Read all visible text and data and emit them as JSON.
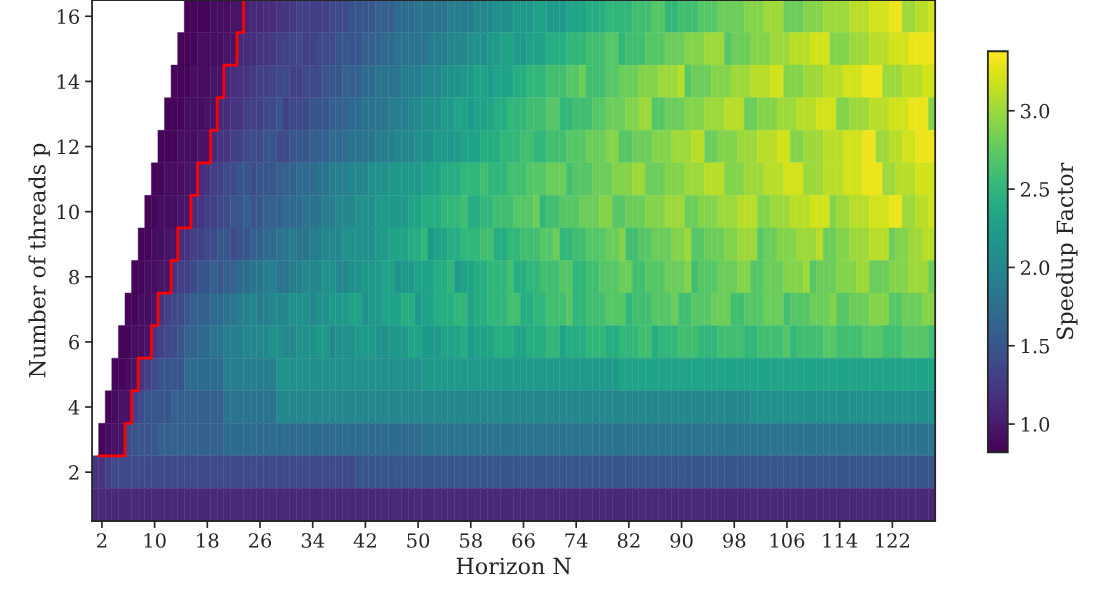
{
  "chart_data": {
    "type": "heatmap",
    "xlabel": "Horizon N",
    "ylabel": "Number of threads p",
    "clabel": "Speedup Factor",
    "xlim": [
      0.5,
      128.5
    ],
    "xticks": [
      2,
      10,
      18,
      26,
      34,
      42,
      50,
      58,
      66,
      74,
      82,
      90,
      98,
      106,
      114,
      122
    ],
    "ylim": [
      0.5,
      16.5
    ],
    "yticks": [
      2,
      4,
      6,
      8,
      10,
      12,
      14,
      16
    ],
    "clim": [
      0.82,
      3.38
    ],
    "cticks": [
      {
        "value": 1,
        "label": "1.0"
      },
      1.5,
      {
        "value": 2,
        "label": "2.0"
      },
      2.5,
      {
        "value": 3,
        "label": "3.0"
      }
    ],
    "series": [
      {
        "type": "line",
        "color": "#ff0000",
        "x": [
          1.5,
          5.5,
          5.5,
          6.5,
          6.5,
          7.5,
          7.5,
          9.5,
          9.5,
          10.5,
          10.5,
          12.5,
          12.5,
          13.5,
          13.5,
          15.5,
          15.5,
          16.5,
          16.5,
          18.5,
          18.5,
          19.5,
          19.5,
          20.5,
          20.5,
          22.5,
          22.5,
          23.5,
          23.5
        ],
        "values": [
          2.5,
          2.5,
          3.5,
          3.5,
          4.5,
          4.5,
          5.5,
          5.5,
          6.5,
          6.5,
          7.5,
          7.5,
          8.5,
          8.5,
          9.5,
          9.5,
          10.5,
          10.5,
          11.5,
          11.5,
          12.5,
          12.5,
          13.5,
          13.5,
          14.5,
          14.5,
          15.5,
          15.5,
          16.5
        ]
      }
    ],
    "cells": [
      [
        null,
        null,
        null,
        null,
        null,
        null,
        null,
        null,
        null,
        null,
        null,
        null,
        null,
        null,
        0.82,
        0.85,
        0.85,
        0.85,
        0.9,
        0.9,
        0.9,
        0.95,
        0.95,
        1.05,
        1.1,
        1.1,
        1.15,
        1.15,
        1.2,
        1.2,
        1.25,
        1.3,
        1.3,
        1.3,
        1.3,
        1.3,
        1.4,
        1.4,
        1.4,
        1.5,
        1.5,
        1.5,
        1.5,
        1.6,
        1.6,
        1.6,
        1.7,
        1.7,
        1.7,
        1.8,
        1.8,
        1.8,
        1.8,
        1.8,
        1.9,
        1.9,
        1.9,
        1.9,
        2.0,
        2.0,
        2.0,
        2.1,
        2.1,
        2.1,
        2.2,
        2.2,
        2.2,
        2.3,
        2.3,
        2.2,
        2.2,
        2.2,
        2.3,
        2.3,
        2.3,
        2.4,
        2.4,
        2.4,
        2.5,
        2.5,
        2.5,
        2.5,
        2.6,
        2.6,
        2.6,
        2.7,
        2.7,
        2.5,
        2.5,
        2.6,
        2.6,
        2.6,
        2.7,
        2.7,
        2.7,
        2.8,
        2.8,
        2.8,
        2.8,
        2.9,
        2.9,
        2.9,
        3.0,
        3.0,
        3.0,
        2.8,
        2.8,
        2.8,
        2.9,
        2.9,
        2.9,
        3.0,
        3.0,
        3.0,
        3.0,
        3.1,
        3.1,
        3.1,
        3.2,
        3.2,
        3.2,
        3.3,
        3.3,
        3.0,
        3.0,
        3.1,
        3.1,
        3.2
      ],
      [
        null,
        null,
        null,
        null,
        null,
        null,
        null,
        null,
        null,
        null,
        null,
        null,
        null,
        0.85,
        0.85,
        0.85,
        0.9,
        0.9,
        0.9,
        0.9,
        0.95,
        0.95,
        1.1,
        1.15,
        1.15,
        1.2,
        1.2,
        1.25,
        1.3,
        1.3,
        1.35,
        1.4,
        1.3,
        1.3,
        1.4,
        1.4,
        1.4,
        1.5,
        1.5,
        1.5,
        1.5,
        1.6,
        1.6,
        1.6,
        1.7,
        1.7,
        1.8,
        1.8,
        1.8,
        1.8,
        1.8,
        1.9,
        1.9,
        1.9,
        2.0,
        2.0,
        2.0,
        2.1,
        2.1,
        2.1,
        2.2,
        2.2,
        2.3,
        2.3,
        2.2,
        2.2,
        2.3,
        2.3,
        2.3,
        2.4,
        2.4,
        2.4,
        2.5,
        2.5,
        2.5,
        2.6,
        2.6,
        2.6,
        2.7,
        2.7,
        2.5,
        2.6,
        2.6,
        2.6,
        2.7,
        2.7,
        2.7,
        2.8,
        2.8,
        2.8,
        2.9,
        2.9,
        2.9,
        3.0,
        3.0,
        3.0,
        2.7,
        2.8,
        2.8,
        2.8,
        2.9,
        2.9,
        2.9,
        3.0,
        3.0,
        3.0,
        3.1,
        3.1,
        3.1,
        3.2,
        3.2,
        3.2,
        2.9,
        2.9,
        2.9,
        3.0,
        3.0,
        3.0,
        3.1,
        3.1,
        3.1,
        3.2,
        3.2,
        3.2,
        3.3,
        3.3,
        3.3,
        3.3
      ],
      [
        null,
        null,
        null,
        null,
        null,
        null,
        null,
        null,
        null,
        null,
        null,
        null,
        0.85,
        0.85,
        0.85,
        0.9,
        0.9,
        0.9,
        0.95,
        0.95,
        1.1,
        1.15,
        1.2,
        1.2,
        1.25,
        1.3,
        1.3,
        1.35,
        1.4,
        1.4,
        1.3,
        1.3,
        1.4,
        1.4,
        1.4,
        1.5,
        1.5,
        1.5,
        1.6,
        1.6,
        1.6,
        1.7,
        1.7,
        1.8,
        1.8,
        1.8,
        1.8,
        1.9,
        1.9,
        1.9,
        2.0,
        2.0,
        2.0,
        2.1,
        2.1,
        2.1,
        2.2,
        2.2,
        2.3,
        2.3,
        2.2,
        2.3,
        2.3,
        2.3,
        2.4,
        2.4,
        2.5,
        2.5,
        2.5,
        2.6,
        2.6,
        2.6,
        2.7,
        2.7,
        2.8,
        2.6,
        2.6,
        2.6,
        2.7,
        2.7,
        2.8,
        2.8,
        2.8,
        2.9,
        2.9,
        2.9,
        3.0,
        3.0,
        3.0,
        3.1,
        2.7,
        2.8,
        2.8,
        2.8,
        2.9,
        2.9,
        2.9,
        3.0,
        3.0,
        3.0,
        3.1,
        3.1,
        3.1,
        3.2,
        3.2,
        2.9,
        2.9,
        2.9,
        3.0,
        3.0,
        3.0,
        3.1,
        3.1,
        3.1,
        3.2,
        3.2,
        3.2,
        3.3,
        3.3,
        3.3,
        3.0,
        3.0,
        3.0,
        3.1,
        3.1,
        3.1,
        3.2,
        3.2
      ],
      [
        null,
        null,
        null,
        null,
        null,
        null,
        null,
        null,
        null,
        null,
        null,
        0.85,
        0.85,
        0.85,
        0.9,
        0.9,
        0.9,
        0.95,
        0.95,
        1.1,
        1.15,
        1.2,
        1.2,
        1.3,
        1.3,
        1.3,
        1.4,
        1.4,
        1.5,
        1.3,
        1.4,
        1.4,
        1.4,
        1.5,
        1.5,
        1.5,
        1.6,
        1.6,
        1.6,
        1.7,
        1.7,
        1.8,
        1.8,
        1.8,
        1.8,
        1.9,
        1.9,
        1.9,
        2.0,
        2.0,
        2.1,
        2.1,
        2.1,
        2.2,
        2.2,
        2.3,
        2.3,
        2.2,
        2.3,
        2.3,
        2.3,
        2.4,
        2.4,
        2.5,
        2.5,
        2.5,
        2.6,
        2.6,
        2.6,
        2.7,
        2.7,
        2.5,
        2.5,
        2.6,
        2.6,
        2.6,
        2.7,
        2.7,
        2.8,
        2.8,
        2.8,
        2.9,
        2.9,
        3.0,
        3.0,
        2.7,
        2.7,
        2.8,
        2.8,
        2.8,
        2.9,
        2.9,
        2.9,
        3.0,
        3.0,
        3.0,
        3.1,
        3.1,
        3.1,
        2.8,
        2.8,
        2.9,
        2.9,
        2.9,
        3.0,
        3.0,
        3.0,
        3.1,
        3.1,
        3.1,
        3.2,
        3.2,
        3.2,
        2.9,
        2.9,
        3.0,
        3.0,
        3.0,
        3.1,
        3.1,
        3.1,
        3.2,
        3.2,
        3.2,
        3.3,
        3.3,
        3.3,
        2.9
      ],
      [
        null,
        null,
        null,
        null,
        null,
        null,
        null,
        null,
        null,
        null,
        0.85,
        0.85,
        0.85,
        0.9,
        0.9,
        0.9,
        0.95,
        0.95,
        1.1,
        1.2,
        1.2,
        1.3,
        1.3,
        1.4,
        1.4,
        1.4,
        1.5,
        1.5,
        1.4,
        1.4,
        1.5,
        1.5,
        1.5,
        1.6,
        1.6,
        1.6,
        1.7,
        1.7,
        1.7,
        1.8,
        1.8,
        1.8,
        1.8,
        1.9,
        1.9,
        1.9,
        2.0,
        2.0,
        2.0,
        2.1,
        2.1,
        2.1,
        2.2,
        2.2,
        2.2,
        2.2,
        2.3,
        2.3,
        2.3,
        2.4,
        2.4,
        2.4,
        2.5,
        2.5,
        2.5,
        2.6,
        2.6,
        2.5,
        2.5,
        2.6,
        2.6,
        2.6,
        2.7,
        2.7,
        2.7,
        2.8,
        2.8,
        2.8,
        2.9,
        2.9,
        2.7,
        2.7,
        2.8,
        2.8,
        2.8,
        2.9,
        2.9,
        2.9,
        3.0,
        3.0,
        3.0,
        3.1,
        3.1,
        2.8,
        2.8,
        2.9,
        2.9,
        2.9,
        3.0,
        3.0,
        3.0,
        3.1,
        3.1,
        3.1,
        3.2,
        3.2,
        2.9,
        2.9,
        3.0,
        3.0,
        3.0,
        3.1,
        3.1,
        3.1,
        3.2,
        3.2,
        3.2,
        3.3,
        3.3,
        3.0,
        3.0,
        3.1,
        3.1,
        3.2,
        3.2,
        3.3,
        3.3,
        3.3
      ],
      [
        null,
        null,
        null,
        null,
        null,
        null,
        null,
        null,
        null,
        0.85,
        0.85,
        0.9,
        0.9,
        0.9,
        0.95,
        0.95,
        1.15,
        1.2,
        1.3,
        1.3,
        1.4,
        1.4,
        1.5,
        1.5,
        1.4,
        1.5,
        1.5,
        1.5,
        1.6,
        1.6,
        1.6,
        1.7,
        1.7,
        1.7,
        1.8,
        1.8,
        1.9,
        1.9,
        1.9,
        2.0,
        2.0,
        2.0,
        2.1,
        2.1,
        2.1,
        2.2,
        2.2,
        2.2,
        2.2,
        2.2,
        2.3,
        2.3,
        2.3,
        2.4,
        2.4,
        2.4,
        2.5,
        2.5,
        2.5,
        2.6,
        2.5,
        2.5,
        2.5,
        2.6,
        2.6,
        2.6,
        2.7,
        2.7,
        2.7,
        2.8,
        2.8,
        2.8,
        2.6,
        2.7,
        2.7,
        2.7,
        2.8,
        2.8,
        2.8,
        2.9,
        2.9,
        2.9,
        3.0,
        3.0,
        2.8,
        2.8,
        2.8,
        2.9,
        2.9,
        2.9,
        3.0,
        3.0,
        3.0,
        3.1,
        3.1,
        3.1,
        2.9,
        2.9,
        2.9,
        3.0,
        3.0,
        3.0,
        3.1,
        3.1,
        3.1,
        3.2,
        3.2,
        3.2,
        3.0,
        3.0,
        3.0,
        3.1,
        3.1,
        3.1,
        3.2,
        3.2,
        3.2,
        3.3,
        3.3,
        3.3,
        3.0,
        3.0,
        3.1,
        3.1,
        3.1,
        3.2,
        3.2,
        3.2
      ],
      [
        null,
        null,
        null,
        null,
        null,
        null,
        null,
        null,
        0.85,
        0.85,
        0.9,
        0.9,
        0.9,
        0.95,
        0.95,
        1.15,
        1.2,
        1.3,
        1.3,
        1.4,
        1.4,
        1.5,
        1.5,
        1.6,
        1.5,
        1.5,
        1.6,
        1.6,
        1.6,
        1.7,
        1.7,
        1.7,
        1.8,
        1.8,
        1.8,
        1.9,
        1.9,
        2.0,
        2.0,
        2.0,
        2.1,
        2.1,
        2.1,
        2.2,
        2.2,
        2.2,
        2.2,
        2.2,
        2.3,
        2.3,
        2.4,
        2.4,
        2.4,
        2.5,
        2.5,
        2.5,
        2.6,
        2.4,
        2.4,
        2.5,
        2.5,
        2.6,
        2.6,
        2.6,
        2.7,
        2.7,
        2.7,
        2.8,
        2.5,
        2.6,
        2.6,
        2.7,
        2.7,
        2.7,
        2.8,
        2.8,
        2.8,
        2.9,
        2.9,
        2.7,
        2.7,
        2.8,
        2.8,
        2.8,
        2.9,
        2.9,
        2.9,
        3.0,
        3.0,
        3.0,
        2.8,
        2.8,
        2.9,
        2.9,
        2.9,
        3.0,
        3.0,
        3.0,
        3.1,
        3.1,
        3.1,
        2.9,
        2.9,
        3.0,
        3.0,
        3.0,
        3.1,
        3.1,
        3.1,
        3.2,
        3.2,
        3.2,
        2.9,
        3.0,
        3.0,
        3.1,
        3.1,
        3.1,
        3.2,
        3.2,
        3.2,
        3.3,
        3.3,
        3.0,
        3.0,
        3.1,
        3.1,
        3.2
      ],
      [
        null,
        null,
        null,
        null,
        null,
        null,
        null,
        0.85,
        0.85,
        0.9,
        0.9,
        0.95,
        0.95,
        1.15,
        1.2,
        1.3,
        1.3,
        1.4,
        1.4,
        1.5,
        1.5,
        1.4,
        1.5,
        1.5,
        1.6,
        1.6,
        1.7,
        1.7,
        1.8,
        1.8,
        1.9,
        1.8,
        1.8,
        1.9,
        1.9,
        2.0,
        2.0,
        2.0,
        2.1,
        2.1,
        2.1,
        2.1,
        2.1,
        2.2,
        2.2,
        2.3,
        2.3,
        2.3,
        2.4,
        2.4,
        2.5,
        2.2,
        2.3,
        2.3,
        2.4,
        2.4,
        2.5,
        2.5,
        2.5,
        2.6,
        2.6,
        2.4,
        2.4,
        2.5,
        2.5,
        2.6,
        2.6,
        2.6,
        2.7,
        2.7,
        2.8,
        2.5,
        2.5,
        2.6,
        2.6,
        2.7,
        2.7,
        2.7,
        2.8,
        2.8,
        2.9,
        2.6,
        2.6,
        2.7,
        2.7,
        2.8,
        2.8,
        2.8,
        2.9,
        2.9,
        3.0,
        2.7,
        2.7,
        2.8,
        2.8,
        2.8,
        2.9,
        2.9,
        3.0,
        3.0,
        3.0,
        2.7,
        2.8,
        2.8,
        2.9,
        2.9,
        2.9,
        3.0,
        3.0,
        3.0,
        3.1,
        2.8,
        2.8,
        2.9,
        2.9,
        3.0,
        3.0,
        3.0,
        3.1,
        3.1,
        3.1,
        2.8,
        2.9,
        2.9,
        3.0,
        3.0,
        3.1,
        3.1
      ],
      [
        null,
        null,
        null,
        null,
        null,
        null,
        0.85,
        0.85,
        0.9,
        0.9,
        0.95,
        0.95,
        1.2,
        1.3,
        1.3,
        1.4,
        1.5,
        1.5,
        1.6,
        1.5,
        1.6,
        1.6,
        1.7,
        1.7,
        1.8,
        1.8,
        1.9,
        1.9,
        1.8,
        1.8,
        1.9,
        1.9,
        2.0,
        2.0,
        2.0,
        2.1,
        2.1,
        2.0,
        2.0,
        2.1,
        2.1,
        2.2,
        2.2,
        2.2,
        2.3,
        2.3,
        2.1,
        2.2,
        2.2,
        2.3,
        2.3,
        2.3,
        2.4,
        2.4,
        2.5,
        2.2,
        2.3,
        2.3,
        2.4,
        2.4,
        2.5,
        2.5,
        2.5,
        2.6,
        2.4,
        2.4,
        2.5,
        2.5,
        2.6,
        2.6,
        2.6,
        2.7,
        2.7,
        2.5,
        2.5,
        2.6,
        2.6,
        2.7,
        2.7,
        2.7,
        2.8,
        2.8,
        2.6,
        2.6,
        2.7,
        2.7,
        2.7,
        2.8,
        2.8,
        2.8,
        2.9,
        2.6,
        2.7,
        2.7,
        2.7,
        2.8,
        2.8,
        2.8,
        2.9,
        2.9,
        2.7,
        2.7,
        2.8,
        2.8,
        2.8,
        2.9,
        2.9,
        2.9,
        3.0,
        2.7,
        2.8,
        2.8,
        2.8,
        2.9,
        2.9,
        2.9,
        3.0,
        3.0,
        2.8,
        2.8,
        2.8,
        2.9,
        2.9,
        2.9,
        3.0,
        3.0,
        3.0,
        2.8
      ],
      [
        null,
        null,
        null,
        null,
        null,
        0.85,
        0.85,
        0.9,
        0.9,
        0.95,
        1.2,
        1.3,
        1.4,
        1.4,
        1.5,
        1.6,
        1.6,
        1.6,
        1.7,
        1.7,
        1.8,
        1.8,
        1.9,
        1.9,
        2.0,
        1.9,
        1.9,
        2.0,
        2.0,
        2.0,
        2.1,
        2.1,
        2.1,
        2.0,
        2.1,
        2.1,
        2.2,
        2.2,
        2.2,
        2.3,
        2.3,
        2.1,
        2.2,
        2.2,
        2.3,
        2.3,
        2.3,
        2.4,
        2.4,
        2.2,
        2.3,
        2.3,
        2.4,
        2.4,
        2.4,
        2.5,
        2.5,
        2.3,
        2.4,
        2.4,
        2.5,
        2.5,
        2.5,
        2.6,
        2.6,
        2.4,
        2.4,
        2.5,
        2.5,
        2.6,
        2.6,
        2.6,
        2.7,
        2.5,
        2.5,
        2.6,
        2.6,
        2.6,
        2.7,
        2.7,
        2.7,
        2.5,
        2.6,
        2.6,
        2.6,
        2.7,
        2.7,
        2.7,
        2.8,
        2.6,
        2.6,
        2.7,
        2.7,
        2.7,
        2.8,
        2.8,
        2.8,
        2.6,
        2.6,
        2.7,
        2.7,
        2.7,
        2.8,
        2.8,
        2.8,
        2.6,
        2.7,
        2.7,
        2.7,
        2.8,
        2.8,
        2.8,
        2.9,
        2.7,
        2.7,
        2.8,
        2.8,
        2.8,
        2.9,
        2.9,
        2.9,
        2.7,
        2.7,
        2.8,
        2.8,
        2.8,
        2.9,
        2.9
      ],
      [
        null,
        null,
        null,
        null,
        0.85,
        0.85,
        0.9,
        0.9,
        0.95,
        1.2,
        1.3,
        1.4,
        1.4,
        1.5,
        1.6,
        1.6,
        1.7,
        1.7,
        1.8,
        1.8,
        1.9,
        1.9,
        1.9,
        2.0,
        2.0,
        2.0,
        2.0,
        2.1,
        2.1,
        2.0,
        2.0,
        2.1,
        2.1,
        2.1,
        2.2,
        2.2,
        2.0,
        2.1,
        2.1,
        2.1,
        2.2,
        2.2,
        2.2,
        2.1,
        2.1,
        2.2,
        2.2,
        2.2,
        2.3,
        2.3,
        2.2,
        2.2,
        2.2,
        2.3,
        2.3,
        2.3,
        2.4,
        2.2,
        2.3,
        2.3,
        2.3,
        2.4,
        2.4,
        2.4,
        2.3,
        2.3,
        2.4,
        2.4,
        2.4,
        2.5,
        2.5,
        2.3,
        2.4,
        2.4,
        2.4,
        2.5,
        2.5,
        2.5,
        2.4,
        2.4,
        2.5,
        2.5,
        2.5,
        2.6,
        2.6,
        2.4,
        2.5,
        2.5,
        2.5,
        2.6,
        2.6,
        2.6,
        2.5,
        2.5,
        2.5,
        2.6,
        2.6,
        2.6,
        2.6,
        2.5,
        2.5,
        2.6,
        2.6,
        2.6,
        2.6,
        2.7,
        2.5,
        2.6,
        2.6,
        2.6,
        2.6,
        2.7,
        2.7,
        2.6,
        2.6,
        2.6,
        2.6,
        2.7,
        2.7,
        2.7,
        2.6,
        2.6,
        2.6,
        2.7,
        2.7,
        2.7,
        2.7,
        2.6
      ],
      [
        null,
        null,
        null,
        0.85,
        0.85,
        0.9,
        0.95,
        1.2,
        1.3,
        1.4,
        1.5,
        1.5,
        1.5,
        1.5,
        1.7,
        1.7,
        1.7,
        1.7,
        1.7,
        1.7,
        1.9,
        1.9,
        1.9,
        1.9,
        1.9,
        1.9,
        1.9,
        1.9,
        2.1,
        2.1,
        2.1,
        2.1,
        2.1,
        2.1,
        2.1,
        2.1,
        2.1,
        2.1,
        2.1,
        2.1,
        2.1,
        2.1,
        2.1,
        2.1,
        2.1,
        2.1,
        2.1,
        2.1,
        2.1,
        2.1,
        2.2,
        2.2,
        2.2,
        2.2,
        2.2,
        2.2,
        2.2,
        2.2,
        2.2,
        2.2,
        2.2,
        2.2,
        2.2,
        2.2,
        2.2,
        2.2,
        2.2,
        2.2,
        2.2,
        2.2,
        2.2,
        2.2,
        2.2,
        2.2,
        2.2,
        2.2,
        2.2,
        2.2,
        2.2,
        2.2,
        2.3,
        2.3,
        2.3,
        2.3,
        2.3,
        2.3,
        2.3,
        2.3,
        2.3,
        2.3,
        2.3,
        2.3,
        2.3,
        2.3,
        2.3,
        2.3,
        2.3,
        2.3,
        2.3,
        2.3,
        2.3,
        2.3,
        2.3,
        2.3,
        2.3,
        2.3,
        2.3,
        2.3,
        2.3,
        2.3,
        2.3,
        2.3,
        2.3,
        2.3,
        2.3,
        2.3,
        2.3,
        2.3,
        2.3,
        2.3,
        2.3,
        2.3,
        2.3,
        2.3,
        2.3,
        2.3,
        2.3,
        2.3
      ],
      [
        null,
        null,
        0.85,
        0.9,
        0.95,
        0.95,
        1.3,
        1.4,
        1.5,
        1.5,
        1.5,
        1.5,
        1.6,
        1.6,
        1.6,
        1.6,
        1.6,
        1.6,
        1.6,
        1.6,
        1.8,
        1.8,
        1.8,
        1.8,
        1.8,
        1.8,
        1.8,
        1.8,
        2.0,
        2.0,
        2.0,
        2.0,
        2.0,
        2.0,
        2.0,
        2.0,
        2.0,
        2.0,
        2.0,
        2.0,
        2.0,
        2.0,
        2.0,
        2.0,
        2.0,
        2.0,
        2.0,
        2.0,
        2.0,
        2.0,
        2.0,
        2.0,
        2.0,
        2.0,
        2.0,
        2.0,
        2.0,
        2.0,
        2.0,
        2.0,
        2.0,
        2.0,
        2.0,
        2.0,
        2.0,
        2.0,
        2.0,
        2.0,
        2.0,
        2.0,
        2.0,
        2.0,
        2.0,
        2.0,
        2.0,
        2.0,
        2.0,
        2.0,
        2.0,
        2.0,
        2.0,
        2.0,
        2.0,
        2.0,
        2.0,
        2.0,
        2.0,
        2.0,
        2.0,
        2.0,
        2.0,
        2.0,
        2.0,
        2.0,
        2.0,
        2.0,
        2.0,
        2.0,
        2.0,
        2.0,
        2.1,
        2.1,
        2.1,
        2.1,
        2.1,
        2.1,
        2.1,
        2.1,
        2.1,
        2.1,
        2.1,
        2.1,
        2.1,
        2.1,
        2.1,
        2.1,
        2.1,
        2.1,
        2.1,
        2.1,
        2.1,
        2.1,
        2.1,
        2.1,
        2.1,
        2.1,
        2.1,
        2.1
      ],
      [
        null,
        0.85,
        0.9,
        0.95,
        0.95,
        1.4,
        1.5,
        1.5,
        1.5,
        1.5,
        1.6,
        1.6,
        1.6,
        1.6,
        1.6,
        1.6,
        1.6,
        1.6,
        1.6,
        1.6,
        1.7,
        1.7,
        1.7,
        1.7,
        1.7,
        1.7,
        1.7,
        1.7,
        1.7,
        1.7,
        1.7,
        1.7,
        1.7,
        1.7,
        1.7,
        1.7,
        1.7,
        1.7,
        1.7,
        1.7,
        1.7,
        1.7,
        1.7,
        1.7,
        1.7,
        1.7,
        1.7,
        1.7,
        1.7,
        1.7,
        1.8,
        1.8,
        1.8,
        1.8,
        1.8,
        1.8,
        1.8,
        1.8,
        1.8,
        1.8,
        1.8,
        1.8,
        1.8,
        1.8,
        1.8,
        1.8,
        1.8,
        1.8,
        1.8,
        1.8,
        1.8,
        1.8,
        1.8,
        1.8,
        1.8,
        1.8,
        1.8,
        1.8,
        1.8,
        1.8,
        1.8,
        1.8,
        1.8,
        1.8,
        1.8,
        1.8,
        1.8,
        1.8,
        1.8,
        1.8,
        1.8,
        1.8,
        1.8,
        1.8,
        1.8,
        1.8,
        1.8,
        1.8,
        1.8,
        1.8,
        1.8,
        1.8,
        1.8,
        1.8,
        1.8,
        1.8,
        1.8,
        1.8,
        1.8,
        1.8,
        1.8,
        1.8,
        1.8,
        1.8,
        1.8,
        1.8,
        1.8,
        1.8,
        1.8,
        1.8,
        1.8,
        1.8,
        1.8,
        1.8,
        1.8,
        1.8,
        1.8,
        1.8
      ],
      [
        1.2,
        1.2,
        1.3,
        1.4,
        1.4,
        1.4,
        1.4,
        1.4,
        1.4,
        1.4,
        1.4,
        1.4,
        1.4,
        1.4,
        1.4,
        1.4,
        1.4,
        1.4,
        1.4,
        1.4,
        1.4,
        1.4,
        1.4,
        1.4,
        1.4,
        1.4,
        1.4,
        1.4,
        1.4,
        1.4,
        1.4,
        1.4,
        1.4,
        1.4,
        1.4,
        1.4,
        1.4,
        1.4,
        1.4,
        1.4,
        1.5,
        1.5,
        1.5,
        1.5,
        1.5,
        1.5,
        1.5,
        1.5,
        1.5,
        1.5,
        1.5,
        1.5,
        1.5,
        1.5,
        1.5,
        1.5,
        1.5,
        1.5,
        1.5,
        1.5,
        1.5,
        1.5,
        1.5,
        1.5,
        1.5,
        1.5,
        1.5,
        1.5,
        1.5,
        1.5,
        1.5,
        1.5,
        1.5,
        1.5,
        1.5,
        1.5,
        1.5,
        1.5,
        1.5,
        1.5,
        1.5,
        1.5,
        1.5,
        1.5,
        1.5,
        1.5,
        1.5,
        1.5,
        1.5,
        1.5,
        1.5,
        1.5,
        1.5,
        1.5,
        1.5,
        1.5,
        1.5,
        1.5,
        1.5,
        1.5,
        1.5,
        1.5,
        1.5,
        1.5,
        1.5,
        1.5,
        1.5,
        1.5,
        1.5,
        1.5,
        1.5,
        1.5,
        1.5,
        1.5,
        1.5,
        1.5,
        1.5,
        1.5,
        1.5,
        1.5,
        1.5,
        1.5,
        1.5,
        1.5,
        1.5,
        1.5,
        1.5,
        1.5
      ],
      [
        1.1,
        1.1,
        1.1,
        1.1,
        1.1,
        1.1,
        1.1,
        1.1,
        1.1,
        1.1,
        1.1,
        1.1,
        1.1,
        1.1,
        1.1,
        1.1,
        1.1,
        1.1,
        1.1,
        1.1,
        1.1,
        1.1,
        1.1,
        1.1,
        1.1,
        1.1,
        1.1,
        1.1,
        1.1,
        1.1,
        1.1,
        1.1,
        1.1,
        1.1,
        1.1,
        1.1,
        1.1,
        1.1,
        1.1,
        1.1,
        1.1,
        1.1,
        1.1,
        1.1,
        1.1,
        1.1,
        1.1,
        1.1,
        1.1,
        1.1,
        1.1,
        1.1,
        1.1,
        1.1,
        1.1,
        1.1,
        1.1,
        1.1,
        1.1,
        1.1,
        1.1,
        1.1,
        1.1,
        1.1,
        1.1,
        1.1,
        1.1,
        1.1,
        1.1,
        1.1,
        1.1,
        1.1,
        1.1,
        1.1,
        1.1,
        1.1,
        1.1,
        1.1,
        1.1,
        1.1,
        1.1,
        1.1,
        1.1,
        1.1,
        1.1,
        1.1,
        1.1,
        1.1,
        1.1,
        1.1,
        1.1,
        1.1,
        1.1,
        1.1,
        1.1,
        1.1,
        1.1,
        1.1,
        1.1,
        1.1,
        1.1,
        1.1,
        1.1,
        1.1,
        1.1,
        1.1,
        1.1,
        1.1,
        1.1,
        1.1,
        1.1,
        1.1,
        1.1,
        1.1,
        1.1,
        1.1,
        1.1,
        1.1,
        1.1,
        1.1,
        1.1,
        1.1,
        1.1,
        1.1,
        1.1,
        1.1,
        1.1,
        1.1
      ]
    ]
  }
}
